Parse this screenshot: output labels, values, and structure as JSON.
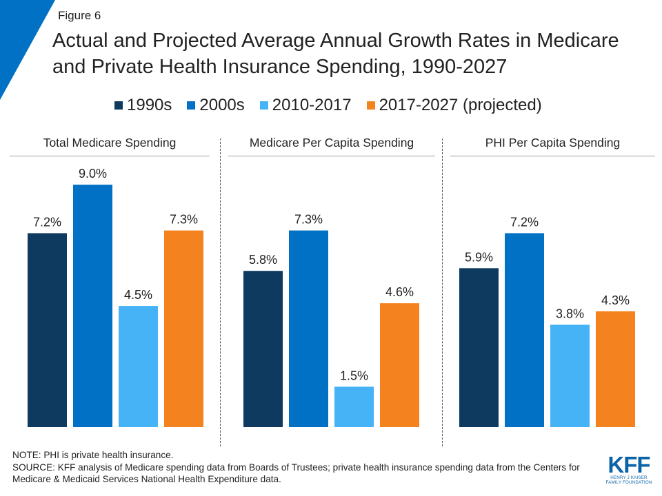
{
  "header": {
    "figure_label": "Figure 6",
    "title": "Actual and Projected Average Annual Growth Rates in Medicare and Private Health Insurance Spending, 1990-2027"
  },
  "colors": {
    "accent": "#0071c5",
    "series": [
      "#0e3a5f",
      "#0071c5",
      "#46b3f7",
      "#f4831f"
    ]
  },
  "chart_data": {
    "type": "bar",
    "unit": "%",
    "series_names": [
      "1990s",
      "2000s",
      "2010-2017",
      "2017-2027 (projected)"
    ],
    "ylim": [
      0,
      10
    ],
    "panels": [
      {
        "title": "Total Medicare Spending",
        "values": [
          7.2,
          9.0,
          4.5,
          7.3
        ],
        "labels": [
          "7.2%",
          "9.0%",
          "4.5%",
          "7.3%"
        ]
      },
      {
        "title": "Medicare Per Capita Spending",
        "values": [
          5.8,
          7.3,
          1.5,
          4.6
        ],
        "labels": [
          "5.8%",
          "7.3%",
          "1.5%",
          "4.6%"
        ]
      },
      {
        "title": "PHI Per Capita Spending",
        "values": [
          5.9,
          7.2,
          3.8,
          4.3
        ],
        "labels": [
          "5.9%",
          "7.2%",
          "3.8%",
          "4.3%"
        ]
      }
    ]
  },
  "legend": [
    {
      "label": "1990s"
    },
    {
      "label": "2000s"
    },
    {
      "label": "2010-2017"
    },
    {
      "label": "2017-2027 (projected)"
    }
  ],
  "notes": {
    "note": "NOTE: PHI is private health insurance.",
    "source": "SOURCE: KFF analysis of Medicare spending data from Boards of Trustees; private health insurance spending data from the Centers for Medicare & Medicaid Services National Health Expenditure data."
  },
  "logo": {
    "main": "KFF",
    "line1": "HENRY J KAISER",
    "line2": "FAMILY FOUNDATION"
  }
}
